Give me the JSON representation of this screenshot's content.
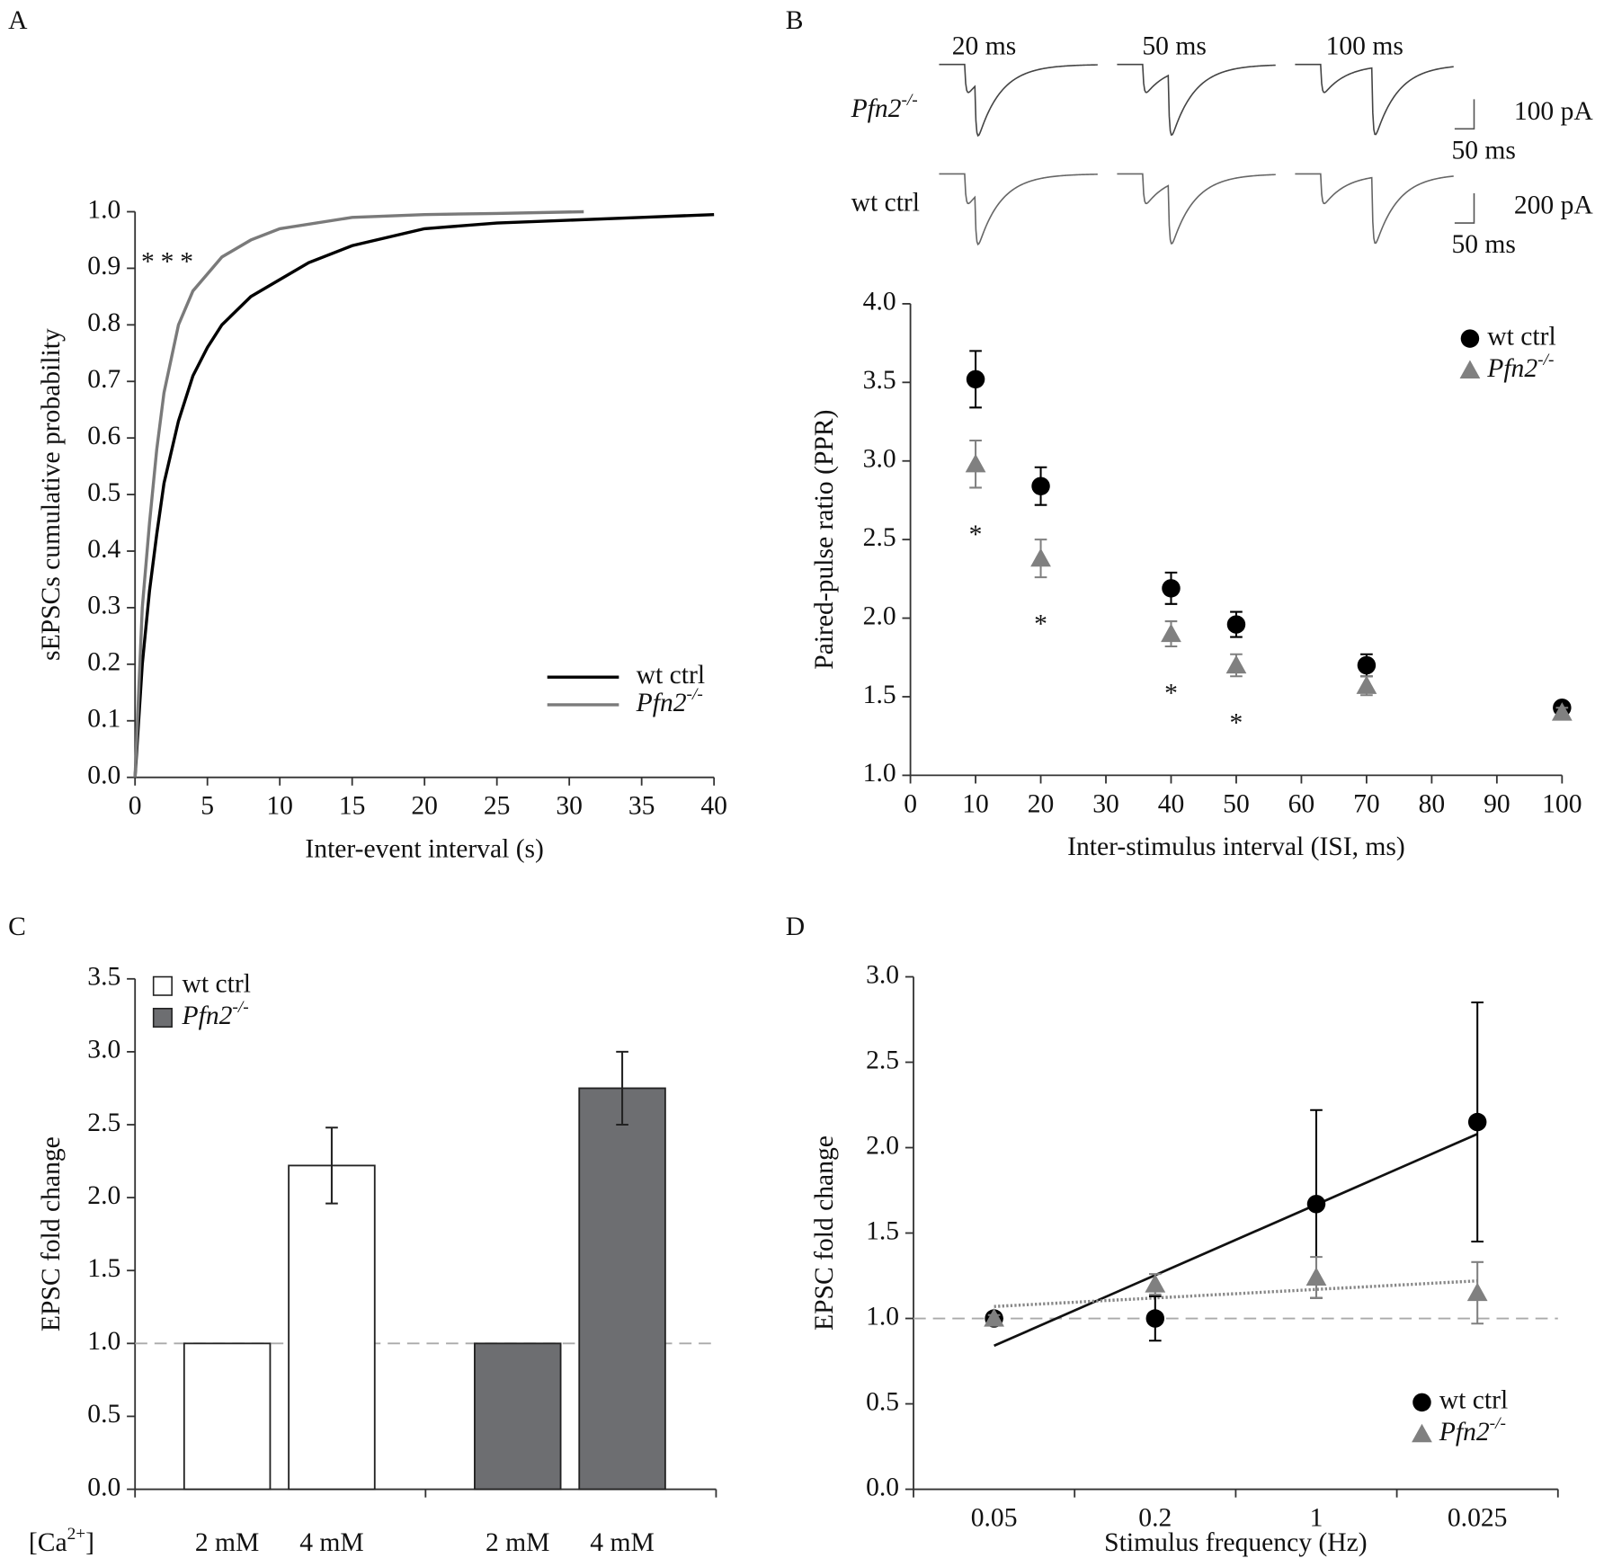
{
  "chart_data": [
    {
      "type": "line",
      "panel_label": "A",
      "xlabel": "Inter-event interval (s)",
      "ylabel": "sEPSCs cumulative probability",
      "annotation": "***",
      "xlim": [
        0,
        40
      ],
      "xticks": [
        0,
        5,
        10,
        15,
        20,
        25,
        30,
        35,
        40
      ],
      "ylim": [
        0,
        1
      ],
      "yticks": [
        {
          "value": 0,
          "label": "0.0"
        },
        0.1,
        0.2,
        0.3,
        0.4,
        0.5,
        0.6,
        0.7,
        0.8,
        0.9,
        {
          "value": 1,
          "label": "1.0"
        }
      ],
      "legend": "lower right",
      "series": [
        {
          "name": "wt ctrl",
          "color": "#000000",
          "x": [
            0,
            0.5,
            1,
            1.5,
            2,
            3,
            4,
            5,
            6,
            8,
            10,
            12,
            15,
            20,
            25,
            30,
            35,
            40
          ],
          "values": [
            0,
            0.2,
            0.33,
            0.43,
            0.52,
            0.63,
            0.71,
            0.76,
            0.8,
            0.85,
            0.88,
            0.91,
            0.94,
            0.97,
            0.98,
            0.985,
            0.99,
            0.995
          ]
        },
        {
          "name": "Pfn2-/-",
          "color": "#7a7a7a",
          "x": [
            0,
            0.5,
            1,
            1.5,
            2,
            3,
            4,
            5,
            6,
            8,
            10,
            15,
            20,
            25,
            31
          ],
          "values": [
            0,
            0.3,
            0.45,
            0.58,
            0.68,
            0.8,
            0.86,
            0.89,
            0.92,
            0.95,
            0.97,
            0.99,
            0.995,
            0.997,
            1.0
          ]
        }
      ]
    },
    {
      "type": "scatter",
      "panel_label": "B",
      "trace_labels": [
        "20 ms",
        "50 ms",
        "100 ms"
      ],
      "trace_rows": [
        "Pfn2-/-",
        "wt ctrl"
      ],
      "scale_bars": [
        [
          "100 pA",
          "50 ms"
        ],
        [
          "200 pA",
          "50 ms"
        ]
      ],
      "xlabel": "Inter-stimulus interval (ISI, ms)",
      "ylabel": "Paired-pulse ratio (PPR)",
      "xlim": [
        0,
        100
      ],
      "xticks": [
        0,
        10,
        20,
        30,
        40,
        50,
        60,
        70,
        80,
        90,
        100
      ],
      "ylim": [
        1,
        4
      ],
      "yticks": [
        {
          "value": 1,
          "label": "1.0"
        },
        1.5,
        {
          "value": 2,
          "label": "2.0"
        },
        2.5,
        {
          "value": 3,
          "label": "3.0"
        },
        3.5,
        {
          "value": 4,
          "label": "4.0"
        }
      ],
      "legend": "upper right",
      "annotations": [
        {
          "text": "*",
          "x": 10
        },
        {
          "text": "*",
          "x": 20
        },
        {
          "text": "*",
          "x": 40
        },
        {
          "text": "*",
          "x": 50
        }
      ],
      "series": [
        {
          "name": "wt ctrl",
          "color": "#000000",
          "marker": "circle",
          "x": [
            10,
            20,
            40,
            50,
            70,
            100
          ],
          "values": [
            3.52,
            2.84,
            2.19,
            1.96,
            1.7,
            1.43
          ],
          "errors": [
            0.18,
            0.12,
            0.1,
            0.08,
            0.07,
            0.02
          ]
        },
        {
          "name": "Pfn2-/-",
          "color": "#808080",
          "marker": "triangle",
          "x": [
            10,
            20,
            40,
            50,
            70,
            100
          ],
          "values": [
            2.98,
            2.38,
            1.9,
            1.7,
            1.57,
            1.4
          ],
          "errors": [
            0.15,
            0.12,
            0.08,
            0.07,
            0.06,
            0.03
          ]
        }
      ]
    },
    {
      "type": "bar",
      "panel_label": "C",
      "xlabel": "[Ca2+]",
      "ylabel": "EPSC fold change",
      "ylim": [
        0,
        3.5
      ],
      "yticks": [
        {
          "value": 0,
          "label": "0.0"
        },
        0.5,
        {
          "value": 1,
          "label": "1.0"
        },
        1.5,
        {
          "value": 2,
          "label": "2.0"
        },
        2.5,
        {
          "value": 3,
          "label": "3.0"
        },
        3.5
      ],
      "reference_line": 1,
      "legend": "upper left",
      "series": [
        {
          "name": "wt ctrl",
          "color": "#ffffff",
          "categories": [
            "2 mM",
            "4 mM"
          ],
          "values": [
            1.0,
            2.22
          ],
          "errors": [
            null,
            0.26
          ]
        },
        {
          "name": "Pfn2-/-",
          "color": "#6d6e71",
          "categories": [
            "2 mM",
            "4 mM"
          ],
          "values": [
            1.0,
            2.75
          ],
          "errors": [
            null,
            0.25
          ]
        }
      ]
    },
    {
      "type": "scatter",
      "panel_label": "D",
      "xlabel": "Stimulus frequency (Hz)",
      "ylabel": "EPSC fold change",
      "categories": [
        "0.05",
        "0.2",
        "1",
        "0.025"
      ],
      "ylim": [
        0,
        3
      ],
      "yticks": [
        {
          "value": 0,
          "label": "0.0"
        },
        0.5,
        {
          "value": 1,
          "label": "1.0"
        },
        1.5,
        {
          "value": 2,
          "label": "2.0"
        },
        2.5,
        {
          "value": 3,
          "label": "3.0"
        }
      ],
      "reference_line": 1,
      "legend": "lower right",
      "series": [
        {
          "name": "wt ctrl",
          "color": "#000000",
          "marker": "circle",
          "values": [
            1.0,
            1.0,
            1.67,
            2.15
          ],
          "errors": [
            0.02,
            0.13,
            0.55,
            0.7
          ],
          "trend": [
            0.84,
            2.08
          ]
        },
        {
          "name": "Pfn2-/-",
          "color": "#808080",
          "marker": "triangle",
          "values": [
            1.0,
            1.2,
            1.24,
            1.15
          ],
          "errors": [
            0.02,
            0.06,
            0.12,
            0.18
          ],
          "trend": [
            1.07,
            1.22
          ]
        }
      ]
    }
  ]
}
